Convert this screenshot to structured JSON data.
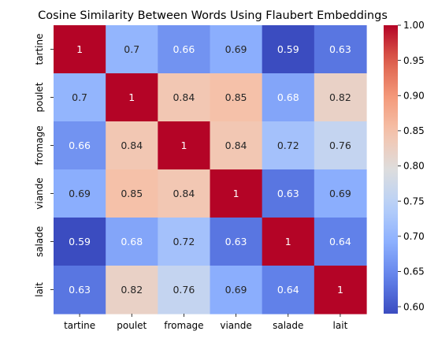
{
  "chart_data": {
    "type": "heatmap",
    "title": "Cosine Similarity Between Words Using Flaubert Embeddings",
    "rows": [
      "tartine",
      "poulet",
      "fromage",
      "viande",
      "salade",
      "lait"
    ],
    "columns": [
      "tartine",
      "poulet",
      "fromage",
      "viande",
      "salade",
      "lait"
    ],
    "values": [
      [
        1.0,
        0.7,
        0.66,
        0.69,
        0.59,
        0.63
      ],
      [
        0.7,
        1.0,
        0.84,
        0.85,
        0.68,
        0.82
      ],
      [
        0.66,
        0.84,
        1.0,
        0.84,
        0.72,
        0.76
      ],
      [
        0.69,
        0.85,
        0.84,
        1.0,
        0.63,
        0.69
      ],
      [
        0.59,
        0.68,
        0.72,
        0.63,
        1.0,
        0.64
      ],
      [
        0.63,
        0.82,
        0.76,
        0.69,
        0.64,
        1.0
      ]
    ],
    "annotations": [
      [
        "1",
        "0.7",
        "0.66",
        "0.69",
        "0.59",
        "0.63"
      ],
      [
        "0.7",
        "1",
        "0.84",
        "0.85",
        "0.68",
        "0.82"
      ],
      [
        "0.66",
        "0.84",
        "1",
        "0.84",
        "0.72",
        "0.76"
      ],
      [
        "0.69",
        "0.85",
        "0.84",
        "1",
        "0.63",
        "0.69"
      ],
      [
        "0.59",
        "0.68",
        "0.72",
        "0.63",
        "1",
        "0.64"
      ],
      [
        "0.63",
        "0.82",
        "0.76",
        "0.69",
        "0.64",
        "1"
      ]
    ],
    "colormap": "coolwarm",
    "vmin": 0.59,
    "vmax": 1.0,
    "colorbar_ticks": [
      0.6,
      0.65,
      0.7,
      0.75,
      0.8,
      0.85,
      0.9,
      0.95,
      1.0
    ],
    "colorbar_tick_labels": [
      "0.60",
      "0.65",
      "0.70",
      "0.75",
      "0.80",
      "0.85",
      "0.90",
      "0.95",
      "1.00"
    ],
    "colorbar_placement": "right",
    "grid": false
  }
}
